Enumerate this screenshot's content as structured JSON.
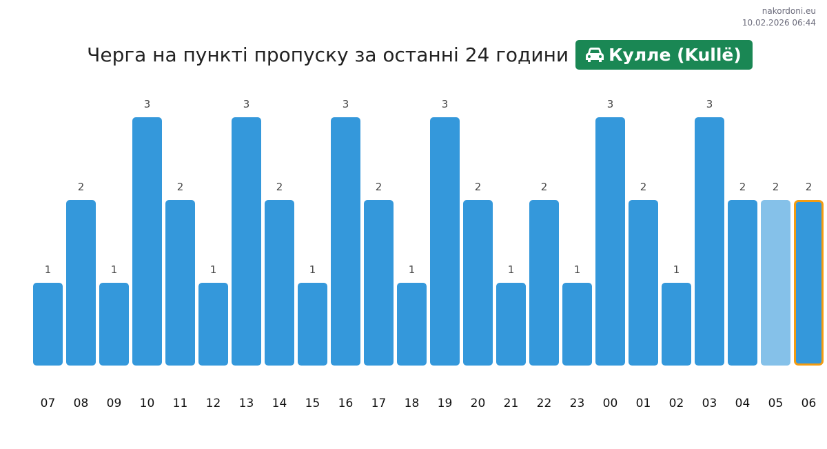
{
  "site": "nakordoni.eu",
  "timestamp": "10.02.2026 06:44",
  "title": "Черга на пункті пропуску за останні 24 години",
  "badge": {
    "label": "Кулле (Kullë)",
    "icon": "car-icon",
    "color": "#1a8754"
  },
  "chart_data": {
    "type": "bar",
    "categories": [
      "07",
      "08",
      "09",
      "10",
      "11",
      "12",
      "13",
      "14",
      "15",
      "16",
      "17",
      "18",
      "19",
      "20",
      "21",
      "22",
      "23",
      "00",
      "01",
      "02",
      "03",
      "04",
      "05",
      "06"
    ],
    "values": [
      1,
      2,
      1,
      3,
      2,
      1,
      3,
      2,
      1,
      3,
      2,
      1,
      3,
      2,
      1,
      2,
      1,
      3,
      2,
      1,
      3,
      2,
      2,
      2
    ],
    "ylim": [
      0,
      3
    ],
    "grid": false,
    "colors": {
      "bar": "#3498db",
      "previous_hour": "#85c1e9",
      "current_highlight": "#f39c12"
    },
    "highlighted": [
      "06"
    ],
    "faded": [
      "05"
    ]
  }
}
